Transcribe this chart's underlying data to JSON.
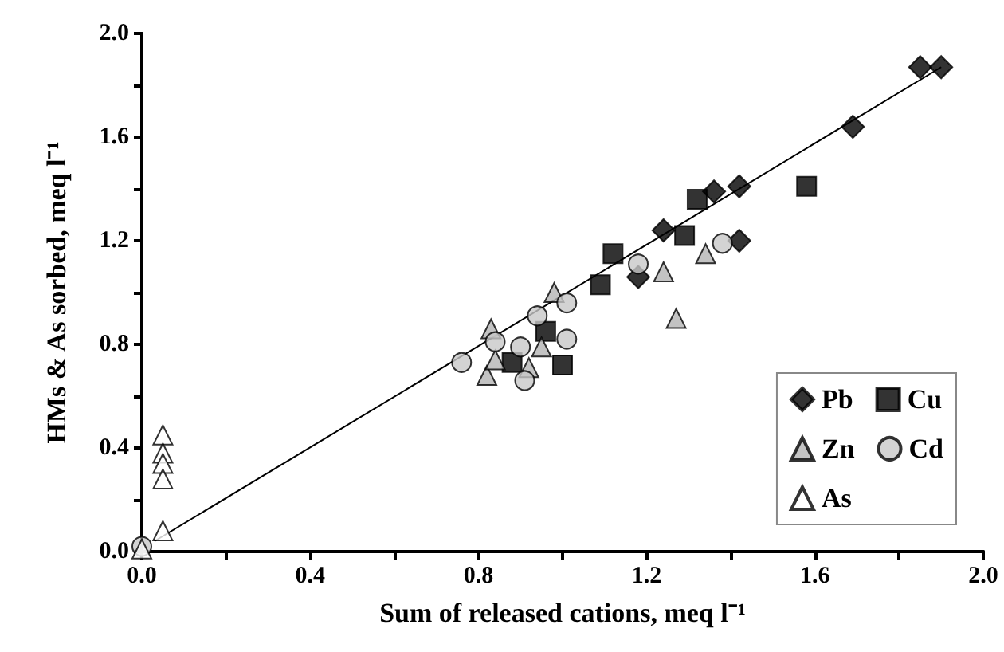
{
  "chart_data": {
    "type": "scatter",
    "xlabel": "Sum of released cations, meq l⁻¹",
    "ylabel": "HMs & As sorbed, meq l⁻¹",
    "xlim": [
      0,
      2
    ],
    "ylim": [
      0,
      2
    ],
    "xticks": [
      {
        "value": 0,
        "label": "0.0"
      },
      {
        "value": 0.2,
        "label": null
      },
      {
        "value": 0.4,
        "label": "0.4"
      },
      {
        "value": 0.6,
        "label": null
      },
      {
        "value": 0.8,
        "label": "0.8"
      },
      {
        "value": 1.0,
        "label": null
      },
      {
        "value": 1.2,
        "label": "1.2"
      },
      {
        "value": 1.4,
        "label": null
      },
      {
        "value": 1.6,
        "label": "1.6"
      },
      {
        "value": 1.8,
        "label": null
      },
      {
        "value": 2,
        "label": "2.0"
      }
    ],
    "yticks": [
      {
        "value": 0,
        "label": "0.0"
      },
      {
        "value": 0.2,
        "label": null
      },
      {
        "value": 0.4,
        "label": "0.4"
      },
      {
        "value": 0.6,
        "label": null
      },
      {
        "value": 0.8,
        "label": "0.8"
      },
      {
        "value": 1.0,
        "label": null
      },
      {
        "value": 1.2,
        "label": "1.2"
      },
      {
        "value": 1.4,
        "label": null
      },
      {
        "value": 1.6,
        "label": "1.6"
      },
      {
        "value": 1.8,
        "label": null
      },
      {
        "value": 2,
        "label": "2.0"
      }
    ],
    "grid": false,
    "legend": "bottom right",
    "series": [
      {
        "type": "line",
        "color": "#000000",
        "marker": "none",
        "x": [
          0.03,
          1.9
        ],
        "values": [
          0.04,
          1.87
        ]
      },
      {
        "name": "Pb",
        "color": "#000000",
        "marker": "diamond",
        "x": [
          1.85,
          1.9,
          1.69,
          1.42,
          1.36,
          1.42,
          1.24,
          1.18
        ],
        "values": [
          1.87,
          1.87,
          1.64,
          1.41,
          1.39,
          1.2,
          1.24,
          1.06
        ]
      },
      {
        "name": "Cu",
        "color": "#000000",
        "marker": "square",
        "x": [
          1.32,
          1.58,
          1.29,
          1.12,
          1.09,
          1.0,
          0.96,
          0.88
        ],
        "values": [
          1.36,
          1.41,
          1.22,
          1.15,
          1.03,
          0.72,
          0.85,
          0.73
        ]
      },
      {
        "name": "Zn",
        "color": "#b4b4b4",
        "marker": "triangle",
        "x": [
          1.34,
          1.24,
          1.27,
          0.98,
          0.82,
          0.83,
          0.95,
          0.92,
          0.84
        ],
        "values": [
          1.15,
          1.08,
          0.9,
          1.0,
          0.68,
          0.86,
          0.79,
          0.71,
          0.74
        ]
      },
      {
        "name": "Cd",
        "color": "#c8c8c8",
        "marker": "circle",
        "x": [
          0.76,
          0.84,
          0.9,
          0.91,
          0.94,
          1.01,
          1.01,
          1.18,
          1.38,
          0.0
        ],
        "values": [
          0.73,
          0.81,
          0.79,
          0.66,
          0.91,
          0.96,
          0.82,
          1.11,
          1.19,
          0.02
        ]
      },
      {
        "name": "As",
        "color": "#ffffff",
        "marker": "triangle",
        "x": [
          0.05,
          0.05,
          0.05,
          0.05,
          0.05,
          0.0
        ],
        "values": [
          0.45,
          0.38,
          0.34,
          0.28,
          0.08,
          0.01
        ]
      }
    ]
  }
}
